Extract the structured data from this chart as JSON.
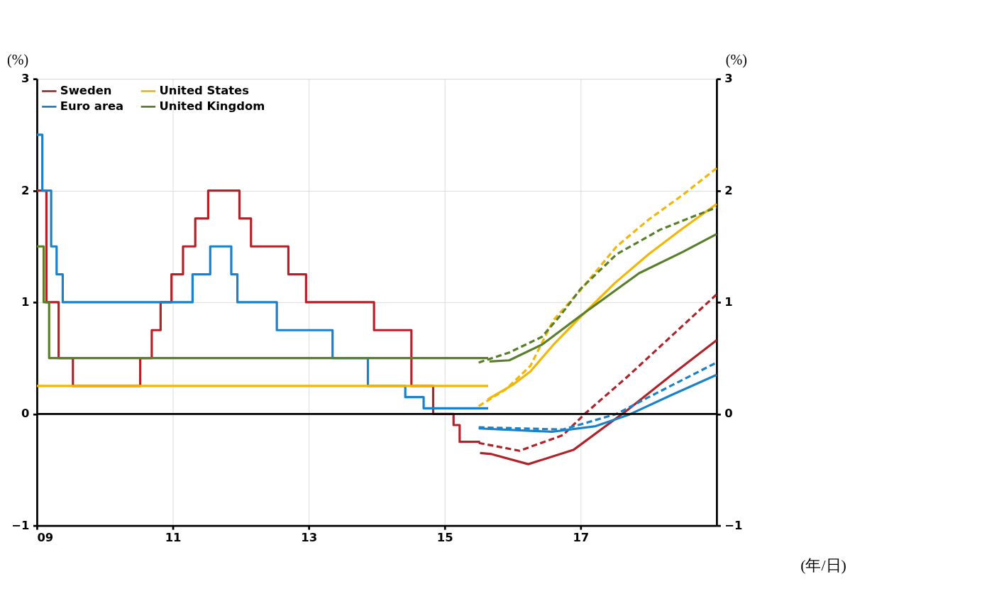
{
  "chart_data": {
    "type": "step",
    "ylabel": "(%)",
    "y2label": "(%)",
    "xlabel": "(年/日)",
    "xlim": [
      2009,
      2019
    ],
    "xticks": [
      {
        "value": 2009,
        "label": "09"
      },
      {
        "value": 2011,
        "label": "11"
      },
      {
        "value": 2013,
        "label": "13"
      },
      {
        "value": 2015,
        "label": "15"
      },
      {
        "value": 2017,
        "label": "17"
      }
    ],
    "ylim": [
      -1,
      3
    ],
    "yticks": [
      -1,
      0,
      1,
      2,
      3
    ],
    "y2lim": [
      -1,
      3
    ],
    "y2ticks": [
      -1,
      0,
      1,
      2,
      3
    ],
    "grid": true,
    "legend": "top left",
    "ref_lines": [
      {
        "axis": "y",
        "value": 0,
        "color": "#000000"
      }
    ],
    "series": [
      {
        "name": "Sweden",
        "color": "#b0232a",
        "line_style": "solid",
        "x": [
          2009.0,
          2009.14,
          2009.32,
          2009.53,
          2010.52,
          2010.69,
          2010.82,
          2010.98,
          2011.15,
          2011.33,
          2011.52,
          2011.98,
          2012.15,
          2012.7,
          2012.96,
          2013.96,
          2014.51,
          2014.83,
          2015.13,
          2015.22,
          2015.52
        ],
        "values": [
          2,
          1,
          0.5,
          0.25,
          0.5,
          0.75,
          1,
          1.25,
          1.5,
          1.75,
          2,
          1.75,
          1.5,
          1.25,
          1,
          0.75,
          0.25,
          0,
          -0.1,
          -0.25,
          -0.25
        ]
      },
      {
        "name": "Euro area",
        "color": "#1a82c8",
        "line_style": "solid",
        "x": [
          2009.0,
          2009.08,
          2009.21,
          2009.29,
          2009.38,
          2011.29,
          2011.55,
          2011.86,
          2011.95,
          2012.53,
          2013.35,
          2013.87,
          2014.42,
          2014.69,
          2015.64
        ],
        "values": [
          2.5,
          2,
          1.5,
          1.25,
          1,
          1.25,
          1.5,
          1.25,
          1,
          0.75,
          0.5,
          0.25,
          0.15,
          0.05,
          0.05
        ]
      },
      {
        "name": "United States",
        "color": "#f2b705",
        "line_style": "solid",
        "x": [
          2009.0,
          2015.64
        ],
        "values": [
          0.25,
          0.25
        ]
      },
      {
        "name": "United Kingdom",
        "color": "#5a7f2a",
        "line_style": "solid",
        "x": [
          2009.0,
          2009.1,
          2009.18,
          2015.64
        ],
        "values": [
          1.5,
          1,
          0.5,
          0.5
        ]
      },
      {
        "color": "#b0232a",
        "type": "line",
        "line_style": "solid",
        "x": [
          2015.52,
          2015.69,
          2016.23,
          2016.9,
          2017.7,
          2018.34,
          2019.0
        ],
        "values": [
          -0.35,
          -0.36,
          -0.45,
          -0.32,
          0.04,
          0.35,
          0.66
        ]
      },
      {
        "color": "#b0232a",
        "type": "line",
        "line_style": "dashed",
        "x": [
          2015.5,
          2016.1,
          2016.74,
          2017.06,
          2017.7,
          2019.0
        ],
        "values": [
          -0.26,
          -0.33,
          -0.19,
          0.0,
          0.34,
          1.07
        ]
      },
      {
        "color": "#1a82c8",
        "type": "line",
        "line_style": "solid",
        "x": [
          2015.5,
          2016.58,
          2017.22,
          2017.7,
          2018.34,
          2019.0
        ],
        "values": [
          -0.13,
          -0.16,
          -0.11,
          -0.01,
          0.17,
          0.35
        ]
      },
      {
        "color": "#1a82c8",
        "type": "line",
        "line_style": "dashed",
        "x": [
          2015.5,
          2016.74,
          2017.53,
          2018.0,
          2019.0
        ],
        "values": [
          -0.12,
          -0.14,
          0.0,
          0.15,
          0.46
        ]
      },
      {
        "color": "#f2b705",
        "type": "line",
        "line_style": "solid",
        "x": [
          2015.63,
          2016.0,
          2016.26,
          2016.6,
          2017.0,
          2017.5,
          2018.0,
          2018.5,
          2019.0
        ],
        "values": [
          0.13,
          0.26,
          0.38,
          0.62,
          0.87,
          1.17,
          1.43,
          1.66,
          1.88
        ]
      },
      {
        "color": "#f2b705",
        "type": "line",
        "line_style": "dashed",
        "x": [
          2015.5,
          2015.9,
          2016.26,
          2016.6,
          2017.0,
          2017.53,
          2018.0,
          2018.5,
          2019.0
        ],
        "values": [
          0.07,
          0.22,
          0.43,
          0.84,
          1.11,
          1.5,
          1.74,
          1.96,
          2.2
        ]
      },
      {
        "color": "#5a7f2a",
        "type": "line",
        "line_style": "solid",
        "x": [
          2015.66,
          2015.95,
          2016.43,
          2017.0,
          2017.86,
          2018.5,
          2019.0
        ],
        "values": [
          0.47,
          0.48,
          0.62,
          0.88,
          1.26,
          1.45,
          1.61
        ]
      },
      {
        "color": "#5a7f2a",
        "type": "line",
        "line_style": "dashed",
        "x": [
          2015.5,
          2015.95,
          2016.43,
          2016.7,
          2017.0,
          2017.53,
          2018.17,
          2019.0
        ],
        "values": [
          0.46,
          0.55,
          0.69,
          0.88,
          1.12,
          1.43,
          1.65,
          1.85
        ]
      }
    ]
  }
}
